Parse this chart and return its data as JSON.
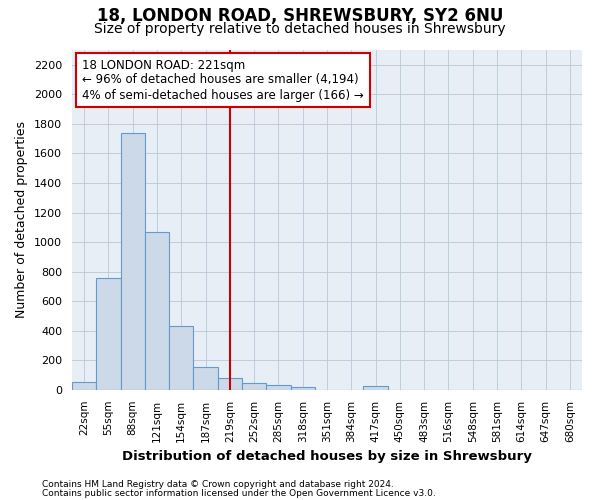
{
  "title": "18, LONDON ROAD, SHREWSBURY, SY2 6NU",
  "subtitle": "Size of property relative to detached houses in Shrewsbury",
  "xlabel": "Distribution of detached houses by size in Shrewsbury",
  "ylabel": "Number of detached properties",
  "categories": [
    "22sqm",
    "55sqm",
    "88sqm",
    "121sqm",
    "154sqm",
    "187sqm",
    "219sqm",
    "252sqm",
    "285sqm",
    "318sqm",
    "351sqm",
    "384sqm",
    "417sqm",
    "450sqm",
    "483sqm",
    "516sqm",
    "548sqm",
    "581sqm",
    "614sqm",
    "647sqm",
    "680sqm"
  ],
  "values": [
    55,
    760,
    1740,
    1070,
    430,
    155,
    80,
    45,
    35,
    20,
    0,
    0,
    25,
    0,
    0,
    0,
    0,
    0,
    0,
    0,
    0
  ],
  "bar_color": "#ccd9e8",
  "bar_edge_color": "#6699cc",
  "vline_x_index": 6,
  "vline_color": "#cc0000",
  "annotation_text": "18 LONDON ROAD: 221sqm\n← 96% of detached houses are smaller (4,194)\n4% of semi-detached houses are larger (166) →",
  "annotation_box_color": "#ffffff",
  "annotation_box_edge": "#cc0000",
  "ylim": [
    0,
    2300
  ],
  "yticks": [
    0,
    200,
    400,
    600,
    800,
    1000,
    1200,
    1400,
    1600,
    1800,
    2000,
    2200
  ],
  "footer1": "Contains HM Land Registry data © Crown copyright and database right 2024.",
  "footer2": "Contains public sector information licensed under the Open Government Licence v3.0.",
  "bg_color": "#ffffff",
  "plot_bg_color": "#e8eef6",
  "grid_color": "#b8c8d8",
  "title_fontsize": 12,
  "subtitle_fontsize": 10,
  "annotation_fontsize": 8.5
}
